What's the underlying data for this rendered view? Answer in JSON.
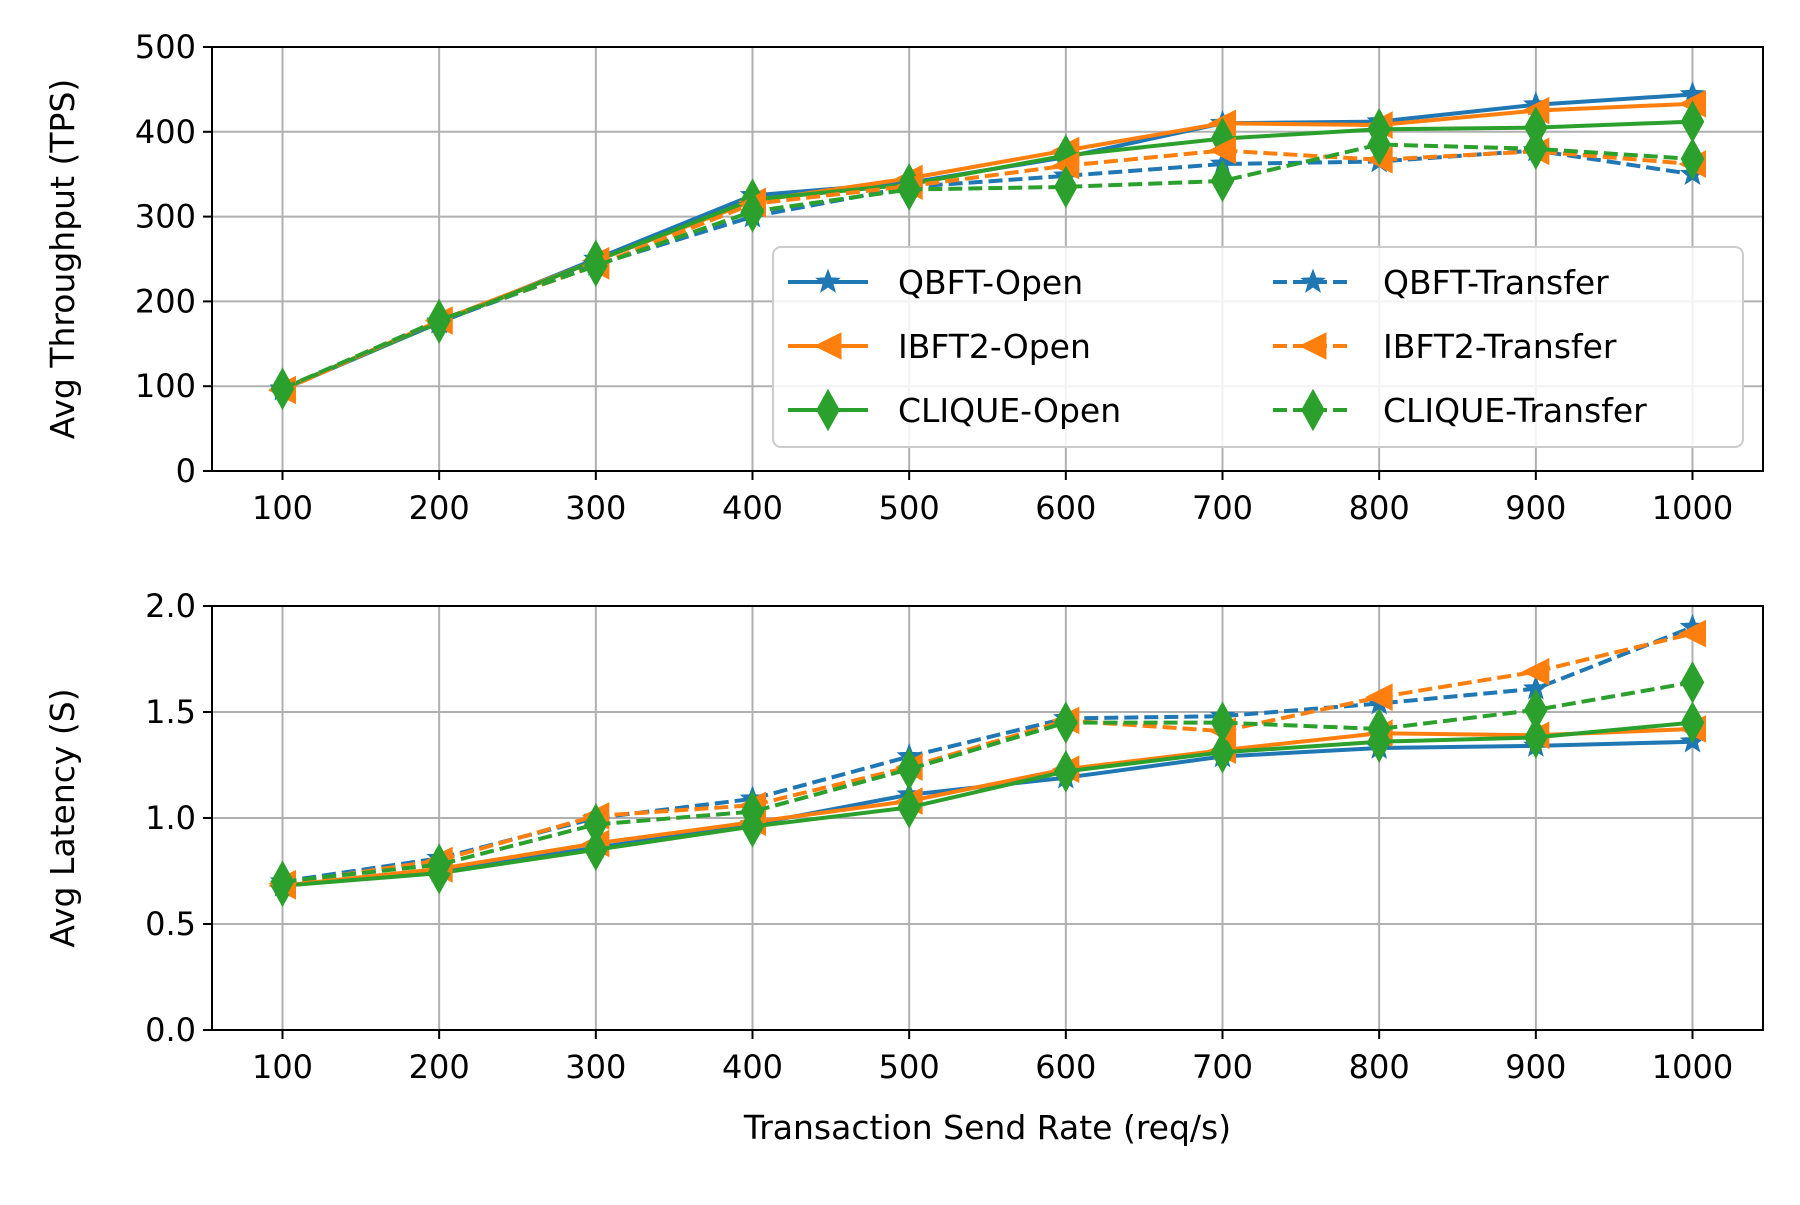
{
  "colors": {
    "qbft": "#1f77b4",
    "ibft2": "#ff7f0e",
    "clique": "#2ca02c"
  },
  "chart_data": [
    {
      "type": "line",
      "ylabel": "Avg Throughput (TPS)",
      "xlabel": "",
      "ylim": [
        0,
        500
      ],
      "yticks": [
        "0",
        "100",
        "200",
        "300",
        "400",
        "500"
      ],
      "ytick_values": [
        0,
        100,
        200,
        300,
        400,
        500
      ],
      "x": [
        100,
        200,
        300,
        400,
        500,
        600,
        700,
        800,
        900,
        1000
      ],
      "xticks": [
        "100",
        "200",
        "300",
        "400",
        "500",
        "600",
        "700",
        "800",
        "900",
        "1000"
      ],
      "grid": true,
      "legend_placement": "lower-right",
      "series": [
        {
          "name": "QBFT-Open",
          "color": "#1f77b4",
          "linestyle": "solid",
          "marker": "star",
          "values": [
            96,
            175,
            250,
            325,
            340,
            370,
            410,
            412,
            432,
            444
          ]
        },
        {
          "name": "IBFT2-Open",
          "color": "#ff7f0e",
          "linestyle": "solid",
          "marker": "triangle-left",
          "values": [
            96,
            177,
            248,
            318,
            345,
            378,
            410,
            408,
            425,
            433
          ]
        },
        {
          "name": "CLIQUE-Open",
          "color": "#2ca02c",
          "linestyle": "solid",
          "marker": "diamond",
          "values": [
            97,
            175,
            248,
            320,
            338,
            372,
            392,
            403,
            405,
            412
          ]
        },
        {
          "name": "QBFT-Transfer",
          "color": "#1f77b4",
          "linestyle": "dashed",
          "marker": "star",
          "values": [
            97,
            176,
            243,
            300,
            335,
            348,
            362,
            365,
            378,
            350
          ]
        },
        {
          "name": "IBFT2-Transfer",
          "color": "#ff7f0e",
          "linestyle": "dashed",
          "marker": "triangle-left",
          "values": [
            95,
            178,
            242,
            315,
            336,
            360,
            378,
            367,
            377,
            362
          ]
        },
        {
          "name": "CLIQUE-Transfer",
          "color": "#2ca02c",
          "linestyle": "dashed",
          "marker": "diamond",
          "values": [
            97,
            178,
            242,
            306,
            332,
            335,
            342,
            385,
            380,
            368
          ]
        }
      ]
    },
    {
      "type": "line",
      "ylabel": "Avg Latency (S)",
      "xlabel": "Transaction Send Rate (req/s)",
      "ylim": [
        0,
        2.0
      ],
      "yticks": [
        "0.0",
        "0.5",
        "1.0",
        "1.5",
        "2.0"
      ],
      "ytick_values": [
        0,
        0.5,
        1.0,
        1.5,
        2.0
      ],
      "x": [
        100,
        200,
        300,
        400,
        500,
        600,
        700,
        800,
        900,
        1000
      ],
      "xticks": [
        "100",
        "200",
        "300",
        "400",
        "500",
        "600",
        "700",
        "800",
        "900",
        "1000"
      ],
      "grid": true,
      "legend_placement": "",
      "series": [
        {
          "name": "QBFT-Open",
          "color": "#1f77b4",
          "linestyle": "solid",
          "marker": "star",
          "values": [
            0.68,
            0.75,
            0.86,
            0.97,
            1.11,
            1.19,
            1.29,
            1.33,
            1.34,
            1.36
          ]
        },
        {
          "name": "IBFT2-Open",
          "color": "#ff7f0e",
          "linestyle": "solid",
          "marker": "triangle-left",
          "values": [
            0.68,
            0.76,
            0.88,
            0.98,
            1.08,
            1.23,
            1.32,
            1.4,
            1.39,
            1.42
          ]
        },
        {
          "name": "CLIQUE-Open",
          "color": "#2ca02c",
          "linestyle": "solid",
          "marker": "diamond",
          "values": [
            0.68,
            0.74,
            0.85,
            0.96,
            1.05,
            1.22,
            1.31,
            1.36,
            1.38,
            1.45
          ]
        },
        {
          "name": "QBFT-Transfer",
          "color": "#1f77b4",
          "linestyle": "dashed",
          "marker": "star",
          "values": [
            0.7,
            0.81,
            1.0,
            1.09,
            1.29,
            1.47,
            1.48,
            1.54,
            1.61,
            1.9
          ]
        },
        {
          "name": "IBFT2-Transfer",
          "color": "#ff7f0e",
          "linestyle": "dashed",
          "marker": "triangle-left",
          "values": [
            0.69,
            0.8,
            1.01,
            1.06,
            1.24,
            1.46,
            1.41,
            1.57,
            1.69,
            1.87
          ]
        },
        {
          "name": "CLIQUE-Transfer",
          "color": "#2ca02c",
          "linestyle": "dashed",
          "marker": "diamond",
          "values": [
            0.7,
            0.78,
            0.97,
            1.03,
            1.23,
            1.45,
            1.45,
            1.42,
            1.51,
            1.64
          ]
        }
      ]
    }
  ]
}
